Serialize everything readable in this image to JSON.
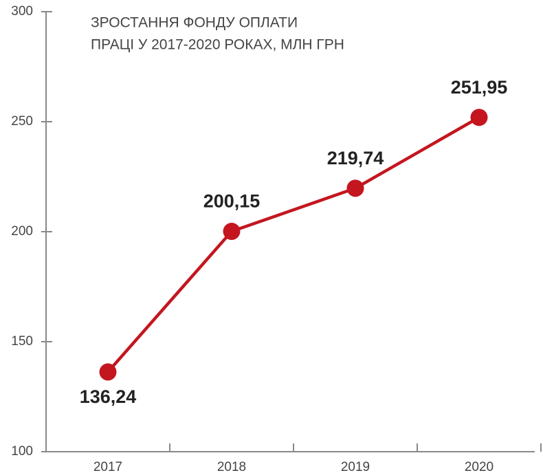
{
  "chart_data": {
    "type": "line",
    "title": [
      "ЗРОСТАННЯ ФОНДУ ОПЛАТИ",
      "ПРАЦІ У 2017-2020 РОКАХ, МЛН ГРН"
    ],
    "categories": [
      "2017",
      "2018",
      "2019",
      "2020"
    ],
    "values": [
      136.24,
      200.15,
      219.74,
      251.95
    ],
    "value_labels": [
      "136,24",
      "200,15",
      "219,74",
      "251,95"
    ],
    "color": "#c4161f",
    "ylim": [
      100,
      300
    ],
    "yticks": [
      100,
      150,
      200,
      250,
      300
    ],
    "grid": false
  }
}
